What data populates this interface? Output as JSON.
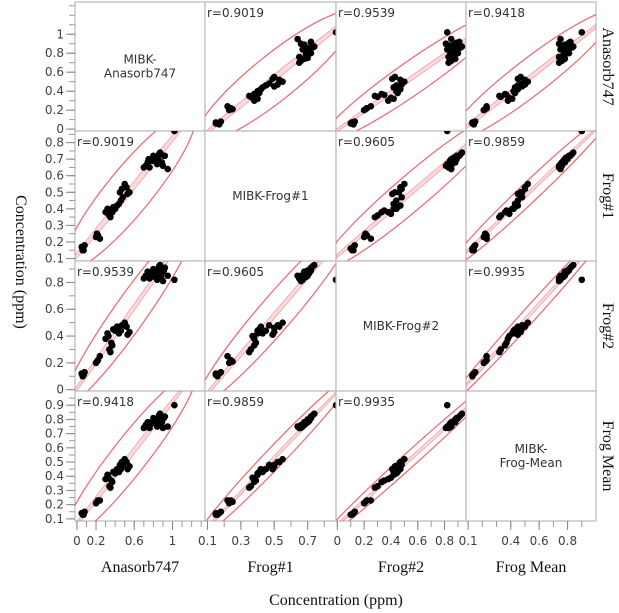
{
  "chart_data": {
    "type": "scatter",
    "title": "",
    "xlabel": "Concentration (ppm)",
    "ylabel": "Concentration (ppm)",
    "variables": [
      "Anasorb747",
      "Frog#1",
      "Frog#2",
      "Frog Mean"
    ],
    "diagonal_labels": [
      [
        "MIBK-",
        "Anasorb747"
      ],
      [
        "MIBK-Frog#1"
      ],
      [
        "MIBK-Frog#2"
      ],
      [
        "MIBK-",
        "Frog-Mean"
      ]
    ],
    "axis_ranges": {
      "Anasorb747": [
        -0.02,
        1.34
      ],
      "Frog#1": [
        0.085,
        0.87
      ],
      "Frog#2": [
        -0.01,
        0.96
      ],
      "Frog Mean": [
        0.085,
        1.0
      ]
    },
    "y_ticks": {
      "Anasorb747": [
        "0",
        "0.2",
        "0.4",
        "0.6",
        "0.8",
        "1"
      ],
      "Frog#1": [
        "0.1",
        "0.2",
        "0.3",
        "0.4",
        "0.5",
        "0.6",
        "0.7",
        "0.8"
      ],
      "Frog#2": [
        "0",
        "0.2",
        "0.4",
        "0.6",
        "0.8"
      ],
      "Frog Mean": [
        "0.1",
        "0.2",
        "0.3",
        "0.4",
        "0.5",
        "0.6",
        "0.7",
        "0.8",
        "0.9"
      ]
    },
    "x_ticks": {
      "Anasorb747": [
        "0",
        "0.2",
        "0.6",
        "1"
      ],
      "Frog#1": [
        "0.1",
        "0.3",
        "0.5",
        "0.7"
      ],
      "Frog#2": [
        "0",
        "0.2",
        "0.4",
        "0.6",
        "0.8"
      ],
      "Frog Mean": [
        "0.1",
        "0.4",
        "0.6",
        "0.8"
      ]
    },
    "correlations": [
      {
        "pair": [
          "Anasorb747",
          "Frog#1"
        ],
        "label": "r=0.9019",
        "r": 0.9019
      },
      {
        "pair": [
          "Anasorb747",
          "Frog#2"
        ],
        "label": "r=0.9539",
        "r": 0.9539
      },
      {
        "pair": [
          "Anasorb747",
          "Frog Mean"
        ],
        "label": "r=0.9418",
        "r": 0.9418
      },
      {
        "pair": [
          "Frog#1",
          "Frog#2"
        ],
        "label": "r=0.9605",
        "r": 0.9605
      },
      {
        "pair": [
          "Frog#1",
          "Frog Mean"
        ],
        "label": "r=0.9859",
        "r": 0.9859
      },
      {
        "pair": [
          "Frog#2",
          "Frog Mean"
        ],
        "label": "r=0.9935",
        "r": 0.9935
      }
    ],
    "observations": {
      "Anasorb747": [
        0.05,
        0.06,
        0.07,
        0.08,
        0.06,
        0.2,
        0.22,
        0.24,
        0.21,
        0.3,
        0.32,
        0.34,
        0.36,
        0.38,
        0.33,
        0.35,
        0.37,
        0.4,
        0.42,
        0.45,
        0.47,
        0.5,
        0.52,
        0.55,
        0.53,
        0.48,
        0.46,
        0.44,
        0.7,
        0.72,
        0.74,
        0.75,
        0.78,
        0.8,
        0.82,
        0.84,
        0.85,
        0.86,
        0.88,
        0.9,
        0.92,
        0.76,
        0.79,
        0.81,
        0.83,
        0.87,
        0.89,
        0.91,
        1.02,
        0.95
      ],
      "Frog#1": [
        0.17,
        0.16,
        0.15,
        0.18,
        0.15,
        0.23,
        0.24,
        0.22,
        0.25,
        0.38,
        0.4,
        0.36,
        0.39,
        0.41,
        0.37,
        0.35,
        0.38,
        0.4,
        0.42,
        0.5,
        0.52,
        0.55,
        0.53,
        0.5,
        0.49,
        0.47,
        0.45,
        0.43,
        0.65,
        0.66,
        0.68,
        0.7,
        0.69,
        0.72,
        0.71,
        0.67,
        0.7,
        0.73,
        0.68,
        0.66,
        0.72,
        0.65,
        0.69,
        0.71,
        0.7,
        0.74,
        0.68,
        0.72,
        0.87,
        0.64
      ],
      "Frog#2": [
        0.12,
        0.1,
        0.11,
        0.13,
        0.12,
        0.2,
        0.22,
        0.25,
        0.21,
        0.38,
        0.42,
        0.3,
        0.35,
        0.45,
        0.4,
        0.28,
        0.33,
        0.44,
        0.47,
        0.46,
        0.48,
        0.5,
        0.47,
        0.43,
        0.41,
        0.48,
        0.44,
        0.42,
        0.83,
        0.85,
        0.88,
        0.86,
        0.84,
        0.9,
        0.87,
        0.82,
        0.89,
        0.92,
        0.84,
        0.81,
        0.91,
        0.83,
        0.86,
        0.88,
        0.85,
        0.93,
        0.87,
        0.89,
        0.82,
        0.85
      ],
      "Frog Mean": [
        0.14,
        0.13,
        0.13,
        0.15,
        0.14,
        0.21,
        0.23,
        0.23,
        0.22,
        0.38,
        0.41,
        0.33,
        0.37,
        0.43,
        0.39,
        0.32,
        0.36,
        0.42,
        0.45,
        0.48,
        0.5,
        0.52,
        0.5,
        0.47,
        0.45,
        0.48,
        0.45,
        0.43,
        0.74,
        0.76,
        0.78,
        0.78,
        0.77,
        0.81,
        0.79,
        0.75,
        0.8,
        0.83,
        0.76,
        0.74,
        0.82,
        0.74,
        0.78,
        0.8,
        0.78,
        0.84,
        0.78,
        0.81,
        0.9,
        0.75
      ]
    },
    "grid": false,
    "ellipse_color": "#e8707a",
    "point_color": "#000000"
  }
}
